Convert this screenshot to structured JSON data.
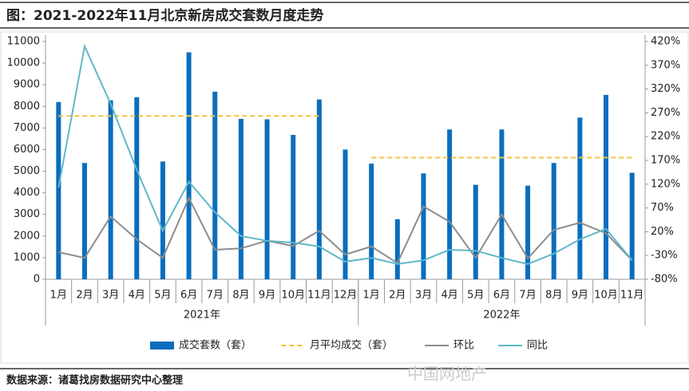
{
  "chart_data": {
    "type": "bar",
    "title": "图：2021-2022年11月北京新房成交套数月度走势",
    "source": "数据来源：诸葛找房数据研究中心整理",
    "watermark": "中国网地产",
    "categories": [
      "1月",
      "2月",
      "3月",
      "4月",
      "5月",
      "6月",
      "7月",
      "8月",
      "9月",
      "10月",
      "11月",
      "12月",
      "1月",
      "2月",
      "3月",
      "4月",
      "5月",
      "6月",
      "7月",
      "8月",
      "9月",
      "10月",
      "11月"
    ],
    "x_groups": [
      {
        "label": "2021年",
        "size": 12
      },
      {
        "label": "2022年",
        "size": 11
      }
    ],
    "series": [
      {
        "name": "成交套数（套）",
        "type": "bar",
        "color": "#0a6ebd",
        "values": [
          8200,
          5380,
          8280,
          8420,
          5450,
          10500,
          8680,
          7420,
          7400,
          6680,
          8320,
          6000,
          5350,
          2780,
          4900,
          6930,
          4370,
          6930,
          4330,
          5380,
          7480,
          8530,
          4930
        ]
      },
      {
        "name": "月平均成交（套）",
        "type": "line",
        "dashed": true,
        "color": "#f5c33b",
        "values": [
          7560,
          7560,
          7560,
          7560,
          7560,
          7560,
          7560,
          7560,
          7560,
          7560,
          7560,
          null,
          5630,
          5630,
          5630,
          5630,
          5630,
          5630,
          5630,
          5630,
          5630,
          5630,
          5630
        ]
      },
      {
        "name": "环比",
        "type": "line",
        "axis": "y2",
        "color": "#8c8c8c",
        "values": [
          -23,
          -35,
          52,
          4,
          -35,
          91,
          -18,
          -15,
          1,
          -10,
          22,
          -28,
          -11,
          -46,
          73,
          41,
          -35,
          56,
          -36,
          24,
          39,
          17,
          -40
        ]
      },
      {
        "name": "同比",
        "type": "line",
        "axis": "y2",
        "color": "#5fb8c8",
        "values": [
          113,
          410,
          289,
          150,
          22,
          125,
          61,
          11,
          1,
          -3,
          -11,
          -43,
          -35,
          -48,
          -40,
          -18,
          -20,
          -35,
          -48,
          -26,
          4,
          26,
          -40
        ]
      }
    ],
    "ylim": [
      0,
      11000
    ],
    "yticks": [
      0,
      1000,
      2000,
      3000,
      4000,
      5000,
      6000,
      7000,
      8000,
      9000,
      10000,
      11000
    ],
    "y2lim": [
      -80,
      420
    ],
    "y2ticks": [
      {
        "value": -80,
        "label": "-80%"
      },
      {
        "value": -30,
        "label": "-30%"
      },
      {
        "value": 20,
        "label": "20%"
      },
      {
        "value": 70,
        "label": "70%"
      },
      {
        "value": 120,
        "label": "120%"
      },
      {
        "value": 170,
        "label": "170%"
      },
      {
        "value": 220,
        "label": "220%"
      },
      {
        "value": 270,
        "label": "270%"
      },
      {
        "value": 320,
        "label": "320%"
      },
      {
        "value": 370,
        "label": "370%"
      },
      {
        "value": 420,
        "label": "420%"
      }
    ],
    "legend": "bottom"
  }
}
